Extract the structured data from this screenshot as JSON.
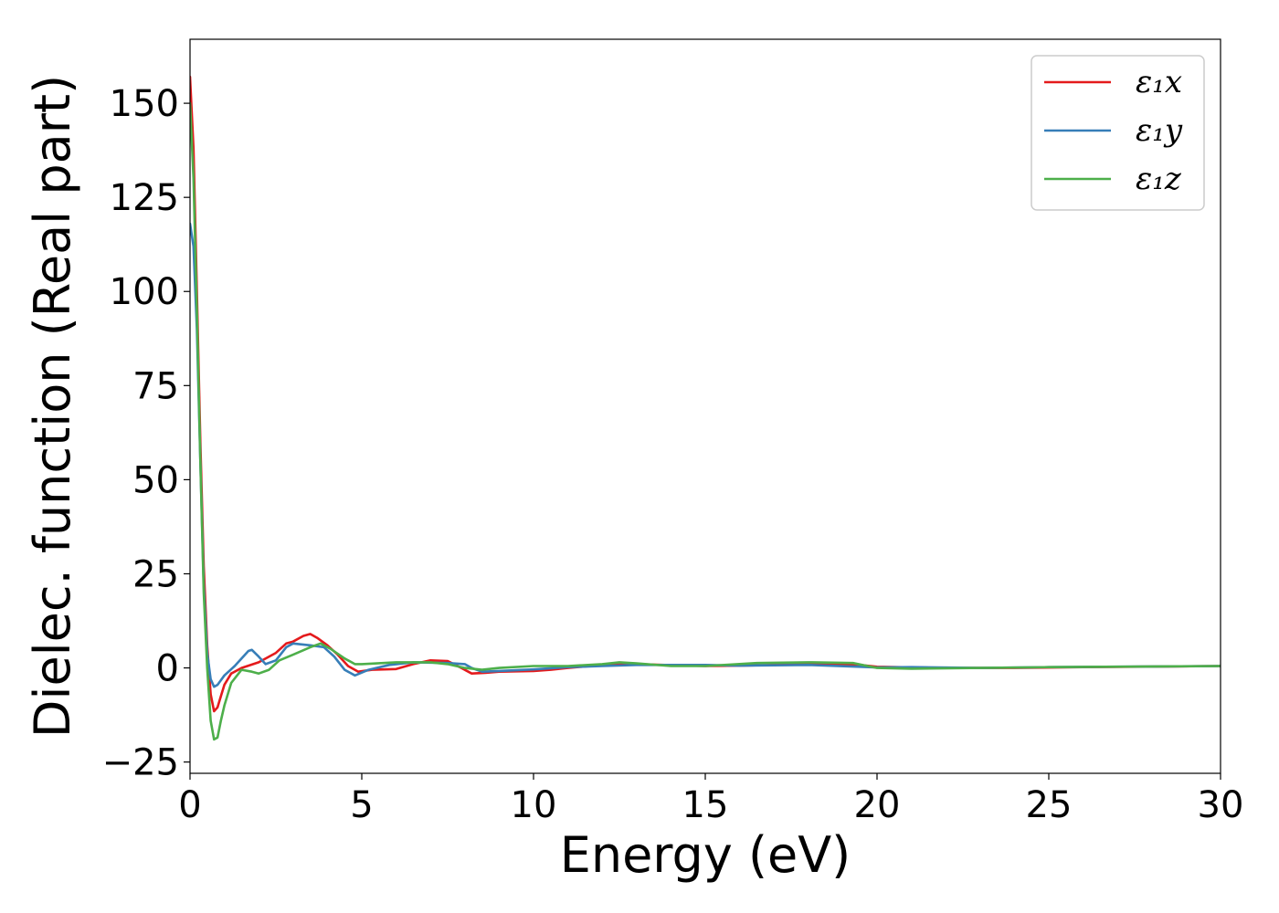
{
  "chart_data": {
    "type": "line",
    "xlabel": "Energy (eV)",
    "ylabel": "Dielec. function (Real part)",
    "xlim": [
      0,
      30
    ],
    "ylim": [
      -28,
      167
    ],
    "x_ticks": [
      0,
      5,
      10,
      15,
      20,
      25,
      30
    ],
    "x_tick_labels": [
      "0",
      "5",
      "10",
      "15",
      "20",
      "25",
      "30"
    ],
    "y_ticks": [
      -25,
      0,
      25,
      50,
      75,
      100,
      125,
      150
    ],
    "y_tick_labels": [
      "−25",
      "0",
      "25",
      "50",
      "75",
      "100",
      "125",
      "150"
    ],
    "grid": false,
    "legend_position": "top-right",
    "series": [
      {
        "name": "ε₁x",
        "color": "#e41a1c",
        "points": [
          [
            0,
            157
          ],
          [
            0.1,
            138
          ],
          [
            0.2,
            100
          ],
          [
            0.3,
            60
          ],
          [
            0.4,
            27
          ],
          [
            0.5,
            6
          ],
          [
            0.6,
            -7
          ],
          [
            0.7,
            -11.5
          ],
          [
            0.8,
            -10.5
          ],
          [
            0.9,
            -7.5
          ],
          [
            1.0,
            -4.5
          ],
          [
            1.2,
            -1.5
          ],
          [
            1.5,
            0
          ],
          [
            2.0,
            1.5
          ],
          [
            2.5,
            4
          ],
          [
            2.8,
            6.5
          ],
          [
            3.0,
            7
          ],
          [
            3.3,
            8.5
          ],
          [
            3.5,
            9
          ],
          [
            3.7,
            8
          ],
          [
            4.0,
            6
          ],
          [
            4.3,
            3.5
          ],
          [
            4.6,
            0.5
          ],
          [
            4.9,
            -1
          ],
          [
            5.3,
            -0.5
          ],
          [
            6.0,
            -0.3
          ],
          [
            6.5,
            1
          ],
          [
            7.0,
            2
          ],
          [
            7.5,
            1.8
          ],
          [
            7.9,
            0
          ],
          [
            8.2,
            -1.5
          ],
          [
            8.6,
            -1.3
          ],
          [
            9.0,
            -1
          ],
          [
            10.0,
            -0.8
          ],
          [
            10.5,
            -0.5
          ],
          [
            11.0,
            0
          ],
          [
            12.0,
            0.8
          ],
          [
            13.0,
            1
          ],
          [
            15.0,
            0.5
          ],
          [
            16.0,
            0.6
          ],
          [
            18.0,
            1
          ],
          [
            19.5,
            0.8
          ],
          [
            20.0,
            0.3
          ],
          [
            22.0,
            0
          ],
          [
            24.0,
            0
          ],
          [
            26.0,
            0.2
          ],
          [
            30.0,
            0.5
          ]
        ]
      },
      {
        "name": "ε₁y",
        "color": "#377eb8",
        "points": [
          [
            0,
            118
          ],
          [
            0.1,
            112
          ],
          [
            0.2,
            90
          ],
          [
            0.3,
            55
          ],
          [
            0.4,
            22
          ],
          [
            0.5,
            4
          ],
          [
            0.6,
            -3
          ],
          [
            0.7,
            -5
          ],
          [
            0.8,
            -4.5
          ],
          [
            1.0,
            -2
          ],
          [
            1.3,
            0.5
          ],
          [
            1.5,
            2.5
          ],
          [
            1.7,
            4.5
          ],
          [
            1.8,
            4.8
          ],
          [
            2.0,
            3
          ],
          [
            2.2,
            1
          ],
          [
            2.5,
            2
          ],
          [
            2.8,
            5.5
          ],
          [
            3.0,
            6.5
          ],
          [
            3.5,
            6
          ],
          [
            3.9,
            5.5
          ],
          [
            4.2,
            3
          ],
          [
            4.5,
            -0.5
          ],
          [
            4.8,
            -2
          ],
          [
            5.2,
            -0.5
          ],
          [
            5.8,
            0.8
          ],
          [
            6.5,
            1.5
          ],
          [
            7.5,
            1.3
          ],
          [
            8.0,
            1
          ],
          [
            8.2,
            0
          ],
          [
            8.5,
            -1
          ],
          [
            9.0,
            -0.8
          ],
          [
            10.0,
            -0.4
          ],
          [
            11.0,
            0.2
          ],
          [
            12.0,
            0.5
          ],
          [
            13.0,
            0.8
          ],
          [
            15.0,
            0.8
          ],
          [
            16.0,
            0.6
          ],
          [
            18.0,
            0.8
          ],
          [
            19.5,
            0.3
          ],
          [
            20.0,
            0.1
          ],
          [
            21.0,
            0.2
          ],
          [
            23.0,
            0
          ],
          [
            25.0,
            0.2
          ],
          [
            30.0,
            0.5
          ]
        ]
      },
      {
        "name": "ε₁z",
        "color": "#4daf4a",
        "points": [
          [
            0,
            150
          ],
          [
            0.1,
            130
          ],
          [
            0.2,
            95
          ],
          [
            0.3,
            55
          ],
          [
            0.4,
            20
          ],
          [
            0.5,
            0
          ],
          [
            0.6,
            -14
          ],
          [
            0.7,
            -19
          ],
          [
            0.8,
            -18.5
          ],
          [
            0.9,
            -14
          ],
          [
            1.0,
            -10
          ],
          [
            1.2,
            -4
          ],
          [
            1.5,
            -0.5
          ],
          [
            1.8,
            -1
          ],
          [
            2.0,
            -1.5
          ],
          [
            2.3,
            -0.5
          ],
          [
            2.6,
            2
          ],
          [
            3.0,
            3.5
          ],
          [
            3.5,
            5.5
          ],
          [
            3.8,
            6.5
          ],
          [
            4.1,
            5
          ],
          [
            4.5,
            2.5
          ],
          [
            4.8,
            1
          ],
          [
            5.0,
            1
          ],
          [
            6.0,
            1.5
          ],
          [
            7.0,
            1.5
          ],
          [
            7.5,
            1
          ],
          [
            8.0,
            0
          ],
          [
            8.5,
            -0.5
          ],
          [
            9.0,
            0
          ],
          [
            10.0,
            0.5
          ],
          [
            11.0,
            0.5
          ],
          [
            12.0,
            1
          ],
          [
            12.5,
            1.5
          ],
          [
            13.0,
            1.2
          ],
          [
            14.0,
            0.5
          ],
          [
            15.0,
            0.5
          ],
          [
            16.5,
            1.3
          ],
          [
            18.0,
            1.5
          ],
          [
            19.3,
            1.3
          ],
          [
            20.0,
            0
          ],
          [
            21.0,
            -0.2
          ],
          [
            23.0,
            0
          ],
          [
            25.0,
            0.2
          ],
          [
            30.0,
            0.5
          ]
        ]
      }
    ]
  }
}
